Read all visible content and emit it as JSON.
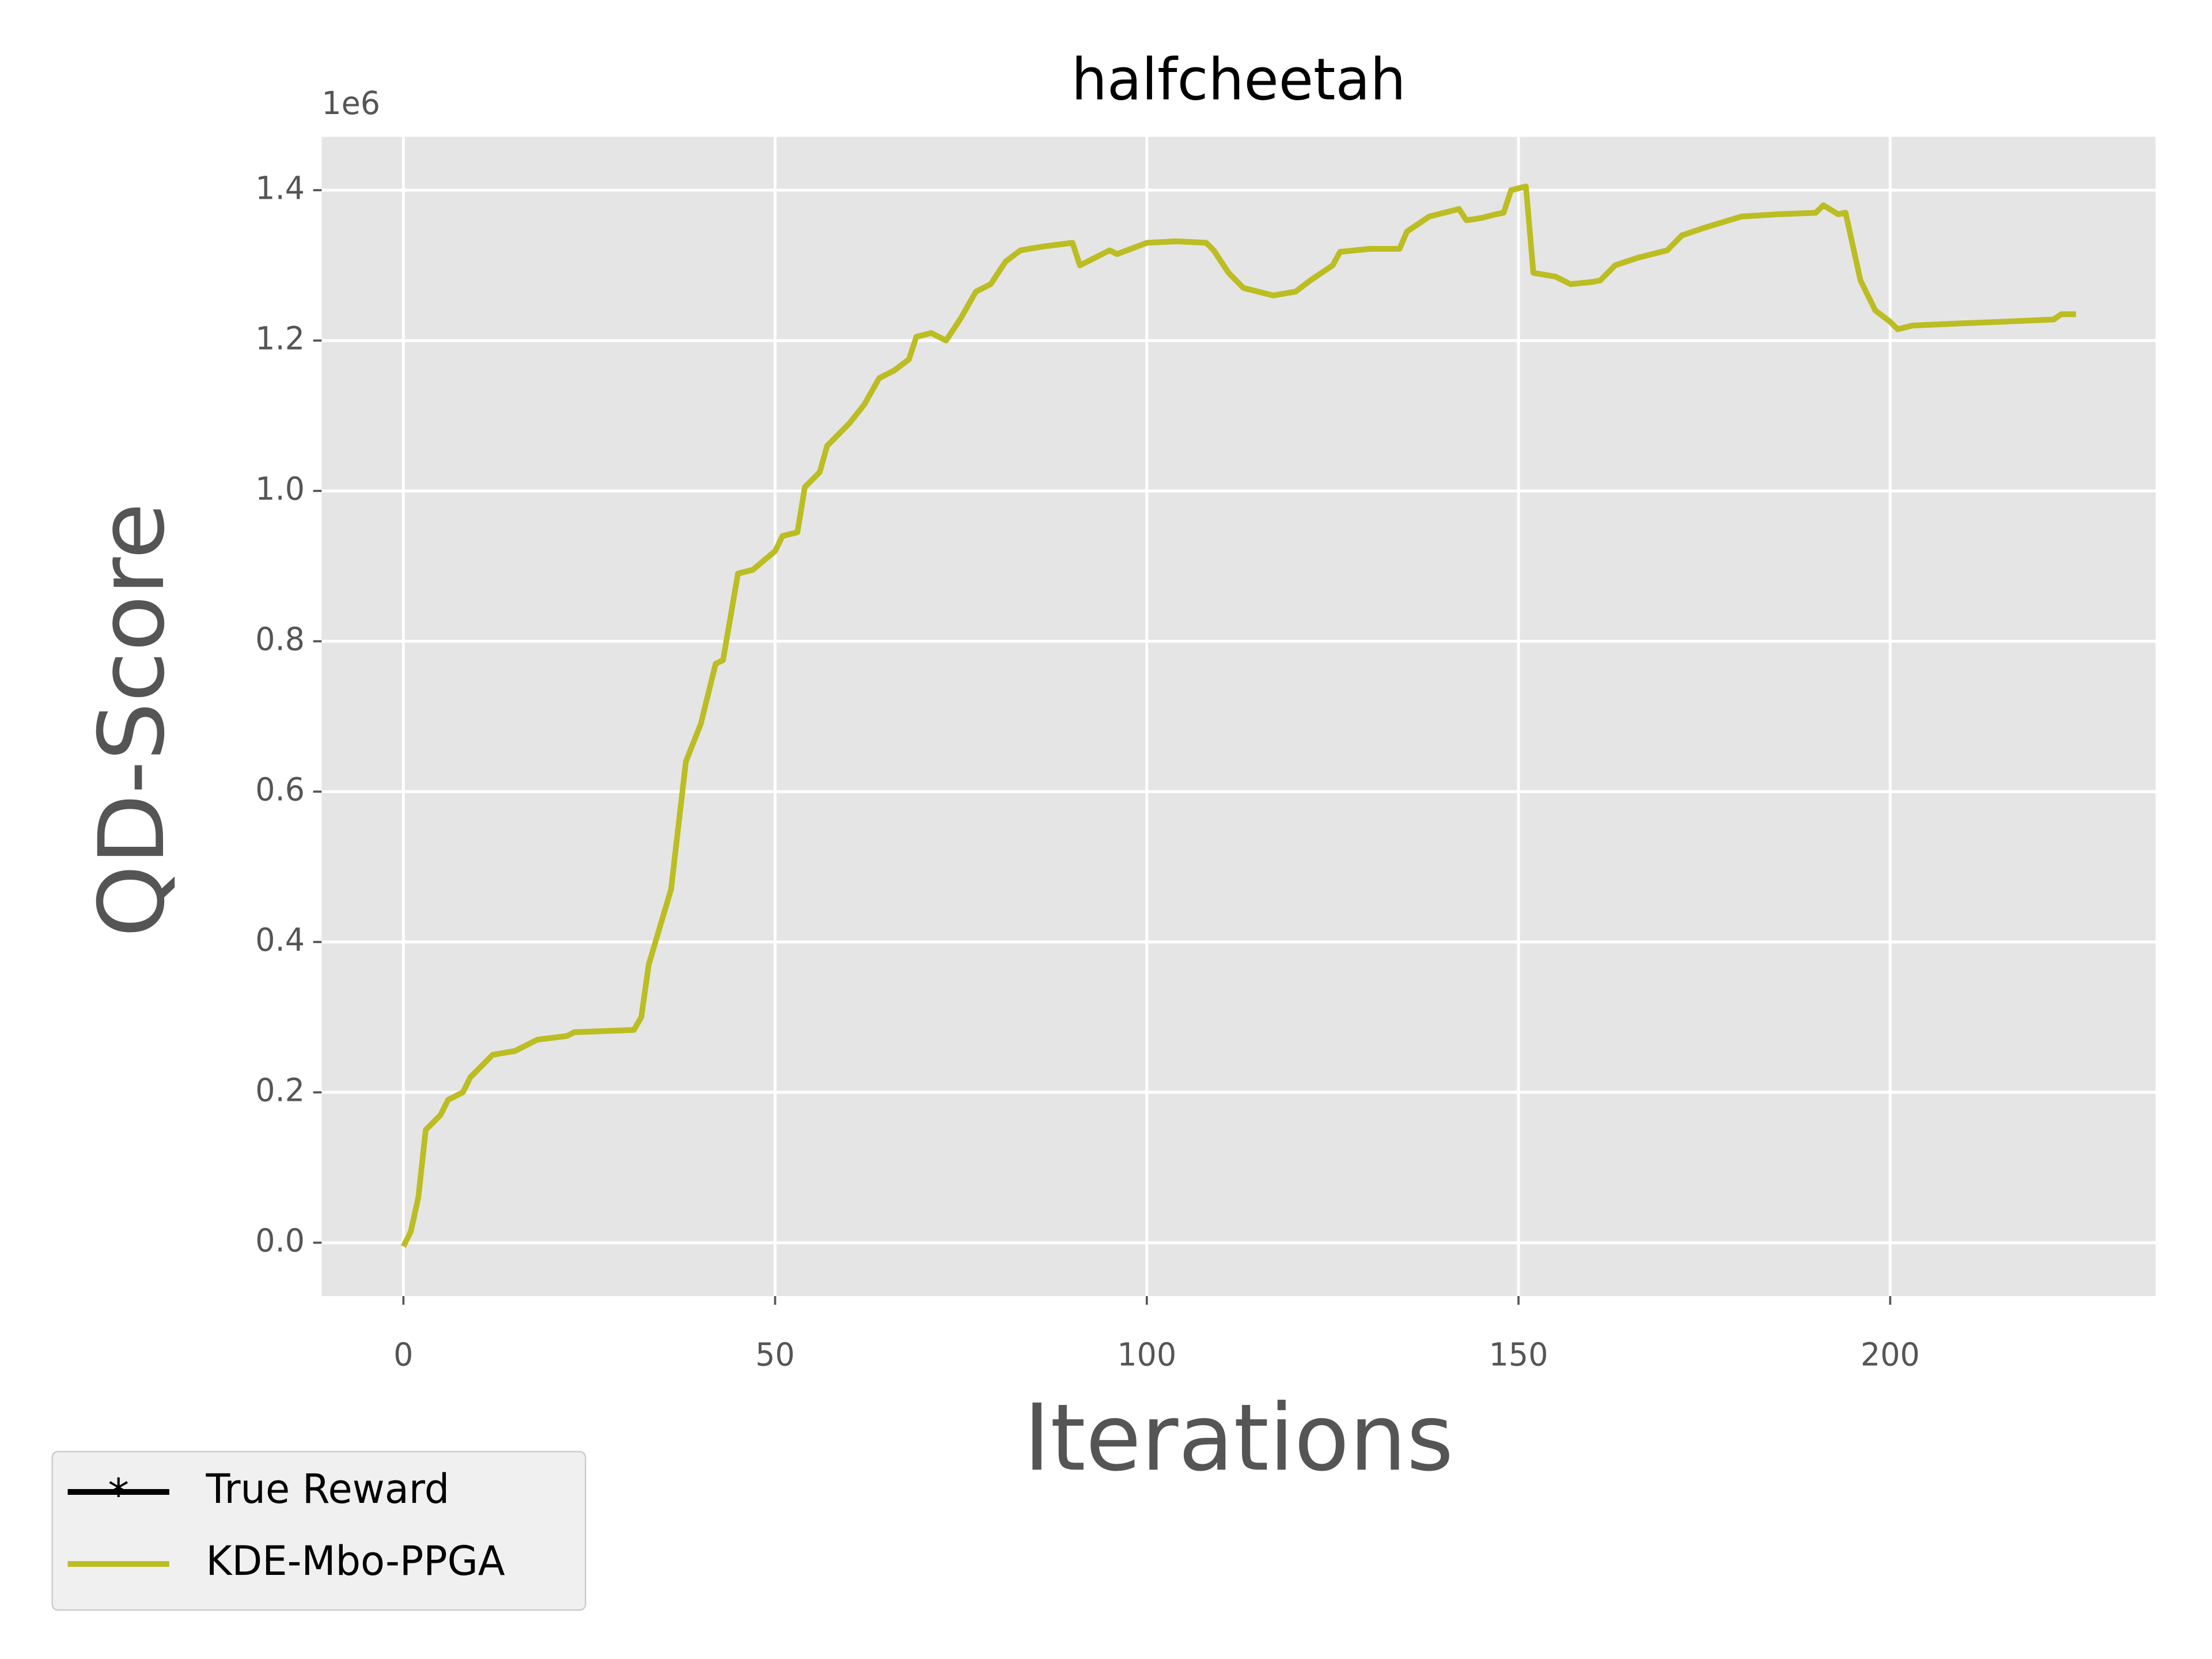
{
  "chart_data": {
    "type": "line",
    "title": "halfcheetah",
    "x_label": "Iterations",
    "y_label": "QD-Score",
    "y_offset_label": "1e6",
    "x": [
      0,
      1,
      2,
      3,
      5,
      6,
      8,
      9,
      12,
      15,
      18,
      22,
      23,
      31,
      32,
      33,
      36,
      38,
      40,
      42,
      43,
      45,
      47,
      50,
      51,
      53,
      54,
      56,
      57,
      60,
      62,
      64,
      66,
      68,
      69,
      71,
      73,
      75,
      77,
      79,
      81,
      83,
      86,
      90,
      91,
      93,
      95,
      96,
      100,
      104,
      108,
      109,
      111,
      113,
      117,
      120,
      122,
      125,
      126,
      130,
      134,
      135,
      138,
      140,
      142,
      143,
      145,
      147,
      148,
      149,
      151,
      152,
      155,
      157,
      160,
      161,
      163,
      166,
      170,
      172,
      175,
      180,
      185,
      190,
      191,
      193,
      194,
      196,
      198,
      200,
      201,
      203,
      210,
      215,
      222,
      223,
      225
    ],
    "series": [
      {
        "name": "KDE-Mbo-PPGA",
        "color": "#bcbd22",
        "values": [
          -0.005,
          0.015,
          0.06,
          0.15,
          0.17,
          0.19,
          0.2,
          0.22,
          0.25,
          0.255,
          0.27,
          0.275,
          0.28,
          0.283,
          0.3,
          0.37,
          0.47,
          0.64,
          0.69,
          0.77,
          0.775,
          0.89,
          0.895,
          0.92,
          0.94,
          0.945,
          1.005,
          1.025,
          1.06,
          1.09,
          1.115,
          1.15,
          1.16,
          1.175,
          1.205,
          1.21,
          1.2,
          1.23,
          1.265,
          1.275,
          1.305,
          1.32,
          1.325,
          1.33,
          1.3,
          1.31,
          1.32,
          1.315,
          1.33,
          1.332,
          1.33,
          1.32,
          1.29,
          1.27,
          1.26,
          1.265,
          1.28,
          1.3,
          1.318,
          1.322,
          1.322,
          1.345,
          1.365,
          1.37,
          1.375,
          1.36,
          1.363,
          1.368,
          1.37,
          1.4,
          1.405,
          1.29,
          1.285,
          1.275,
          1.278,
          1.28,
          1.3,
          1.31,
          1.32,
          1.34,
          1.35,
          1.365,
          1.368,
          1.37,
          1.38,
          1.368,
          1.37,
          1.28,
          1.24,
          1.225,
          1.215,
          1.22,
          1.223,
          1.225,
          1.228,
          1.235,
          1.235
        ]
      }
    ],
    "legend_extra": [
      {
        "name": "True Reward",
        "color": "#000000",
        "marker": "*"
      }
    ],
    "legend_position": "outside-lower-left",
    "xlim": [
      -11.0,
      235.7
    ],
    "ylim": [
      -0.071,
      1.471
    ],
    "xticks": [
      0,
      50,
      100,
      150,
      200
    ],
    "yticks": [
      {
        "value": 0,
        "label": "0.0"
      },
      0.2,
      0.4,
      0.6,
      0.8,
      {
        "value": 1,
        "label": "1.0"
      },
      1.2,
      1.4
    ],
    "grid": true
  }
}
